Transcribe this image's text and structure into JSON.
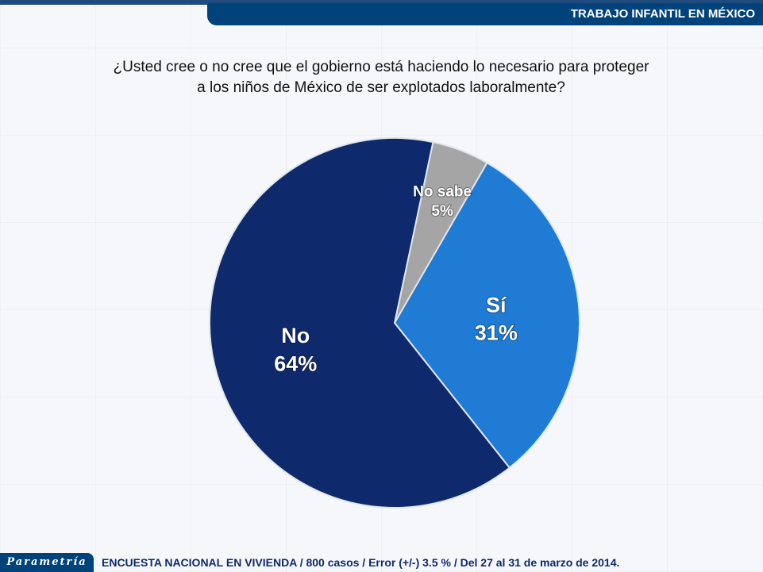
{
  "header": {
    "title": "TRABAJO INFANTIL EN MÉXICO"
  },
  "question": {
    "line1": "¿Usted cree o no cree que el gobierno está haciendo lo necesario para proteger",
    "line2": "a los niños de México de ser explotados laboralmente?"
  },
  "chart_data": {
    "type": "pie",
    "title": "¿Usted cree o no cree que el gobierno está haciendo lo necesario para proteger a los niños de México de ser explotados laboralmente?",
    "slices": [
      {
        "label": "No sabe",
        "value": 5,
        "display": "5%",
        "color": "#a5a5a5"
      },
      {
        "label": "Sí",
        "value": 31,
        "display": "31%",
        "color": "#1f7bd4"
      },
      {
        "label": "No",
        "value": 64,
        "display": "64%",
        "color": "#0e2a6c"
      }
    ]
  },
  "footer": {
    "logo": "Parametría",
    "text": "ENCUESTA NACIONAL EN VIVIENDA / 800 casos / Error (+/-) 3.5 % / Del 27 al 31 de marzo de 2014."
  }
}
